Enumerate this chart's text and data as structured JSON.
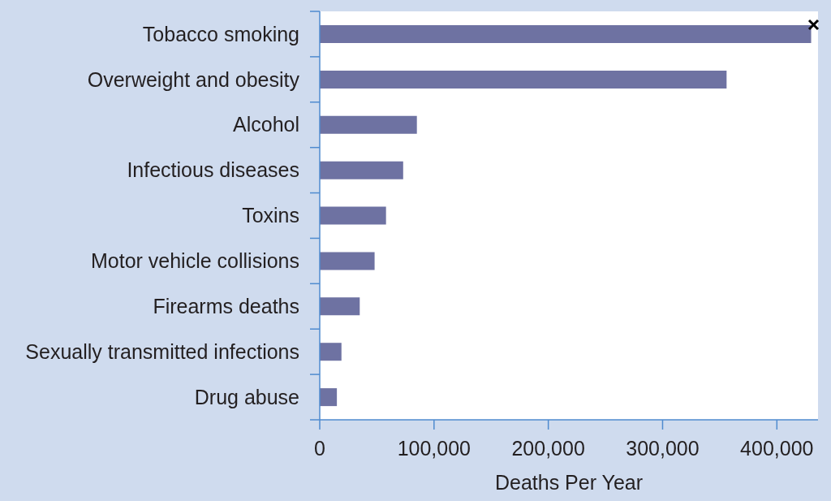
{
  "chart_data": {
    "type": "bar",
    "orientation": "horizontal",
    "categories": [
      "Tobacco smoking",
      "Overweight and obesity",
      "Alcohol",
      "Infectious diseases",
      "Toxins",
      "Motor vehicle collisions",
      "Firearms deaths",
      "Sexually transmitted infections",
      "Drug abuse"
    ],
    "values": [
      430000,
      356000,
      85000,
      73000,
      58000,
      48000,
      35000,
      19000,
      15000
    ],
    "color": "#6e72a2",
    "xlabel": "Deaths Per Year",
    "xlim": [
      0,
      436000
    ],
    "xticks": [
      0,
      {
        "value": 100000,
        "label": "100,000"
      },
      {
        "value": 200000,
        "label": "200,000"
      },
      {
        "value": 300000,
        "label": "300,000"
      },
      {
        "value": 400000,
        "label": "400,000"
      }
    ]
  }
}
